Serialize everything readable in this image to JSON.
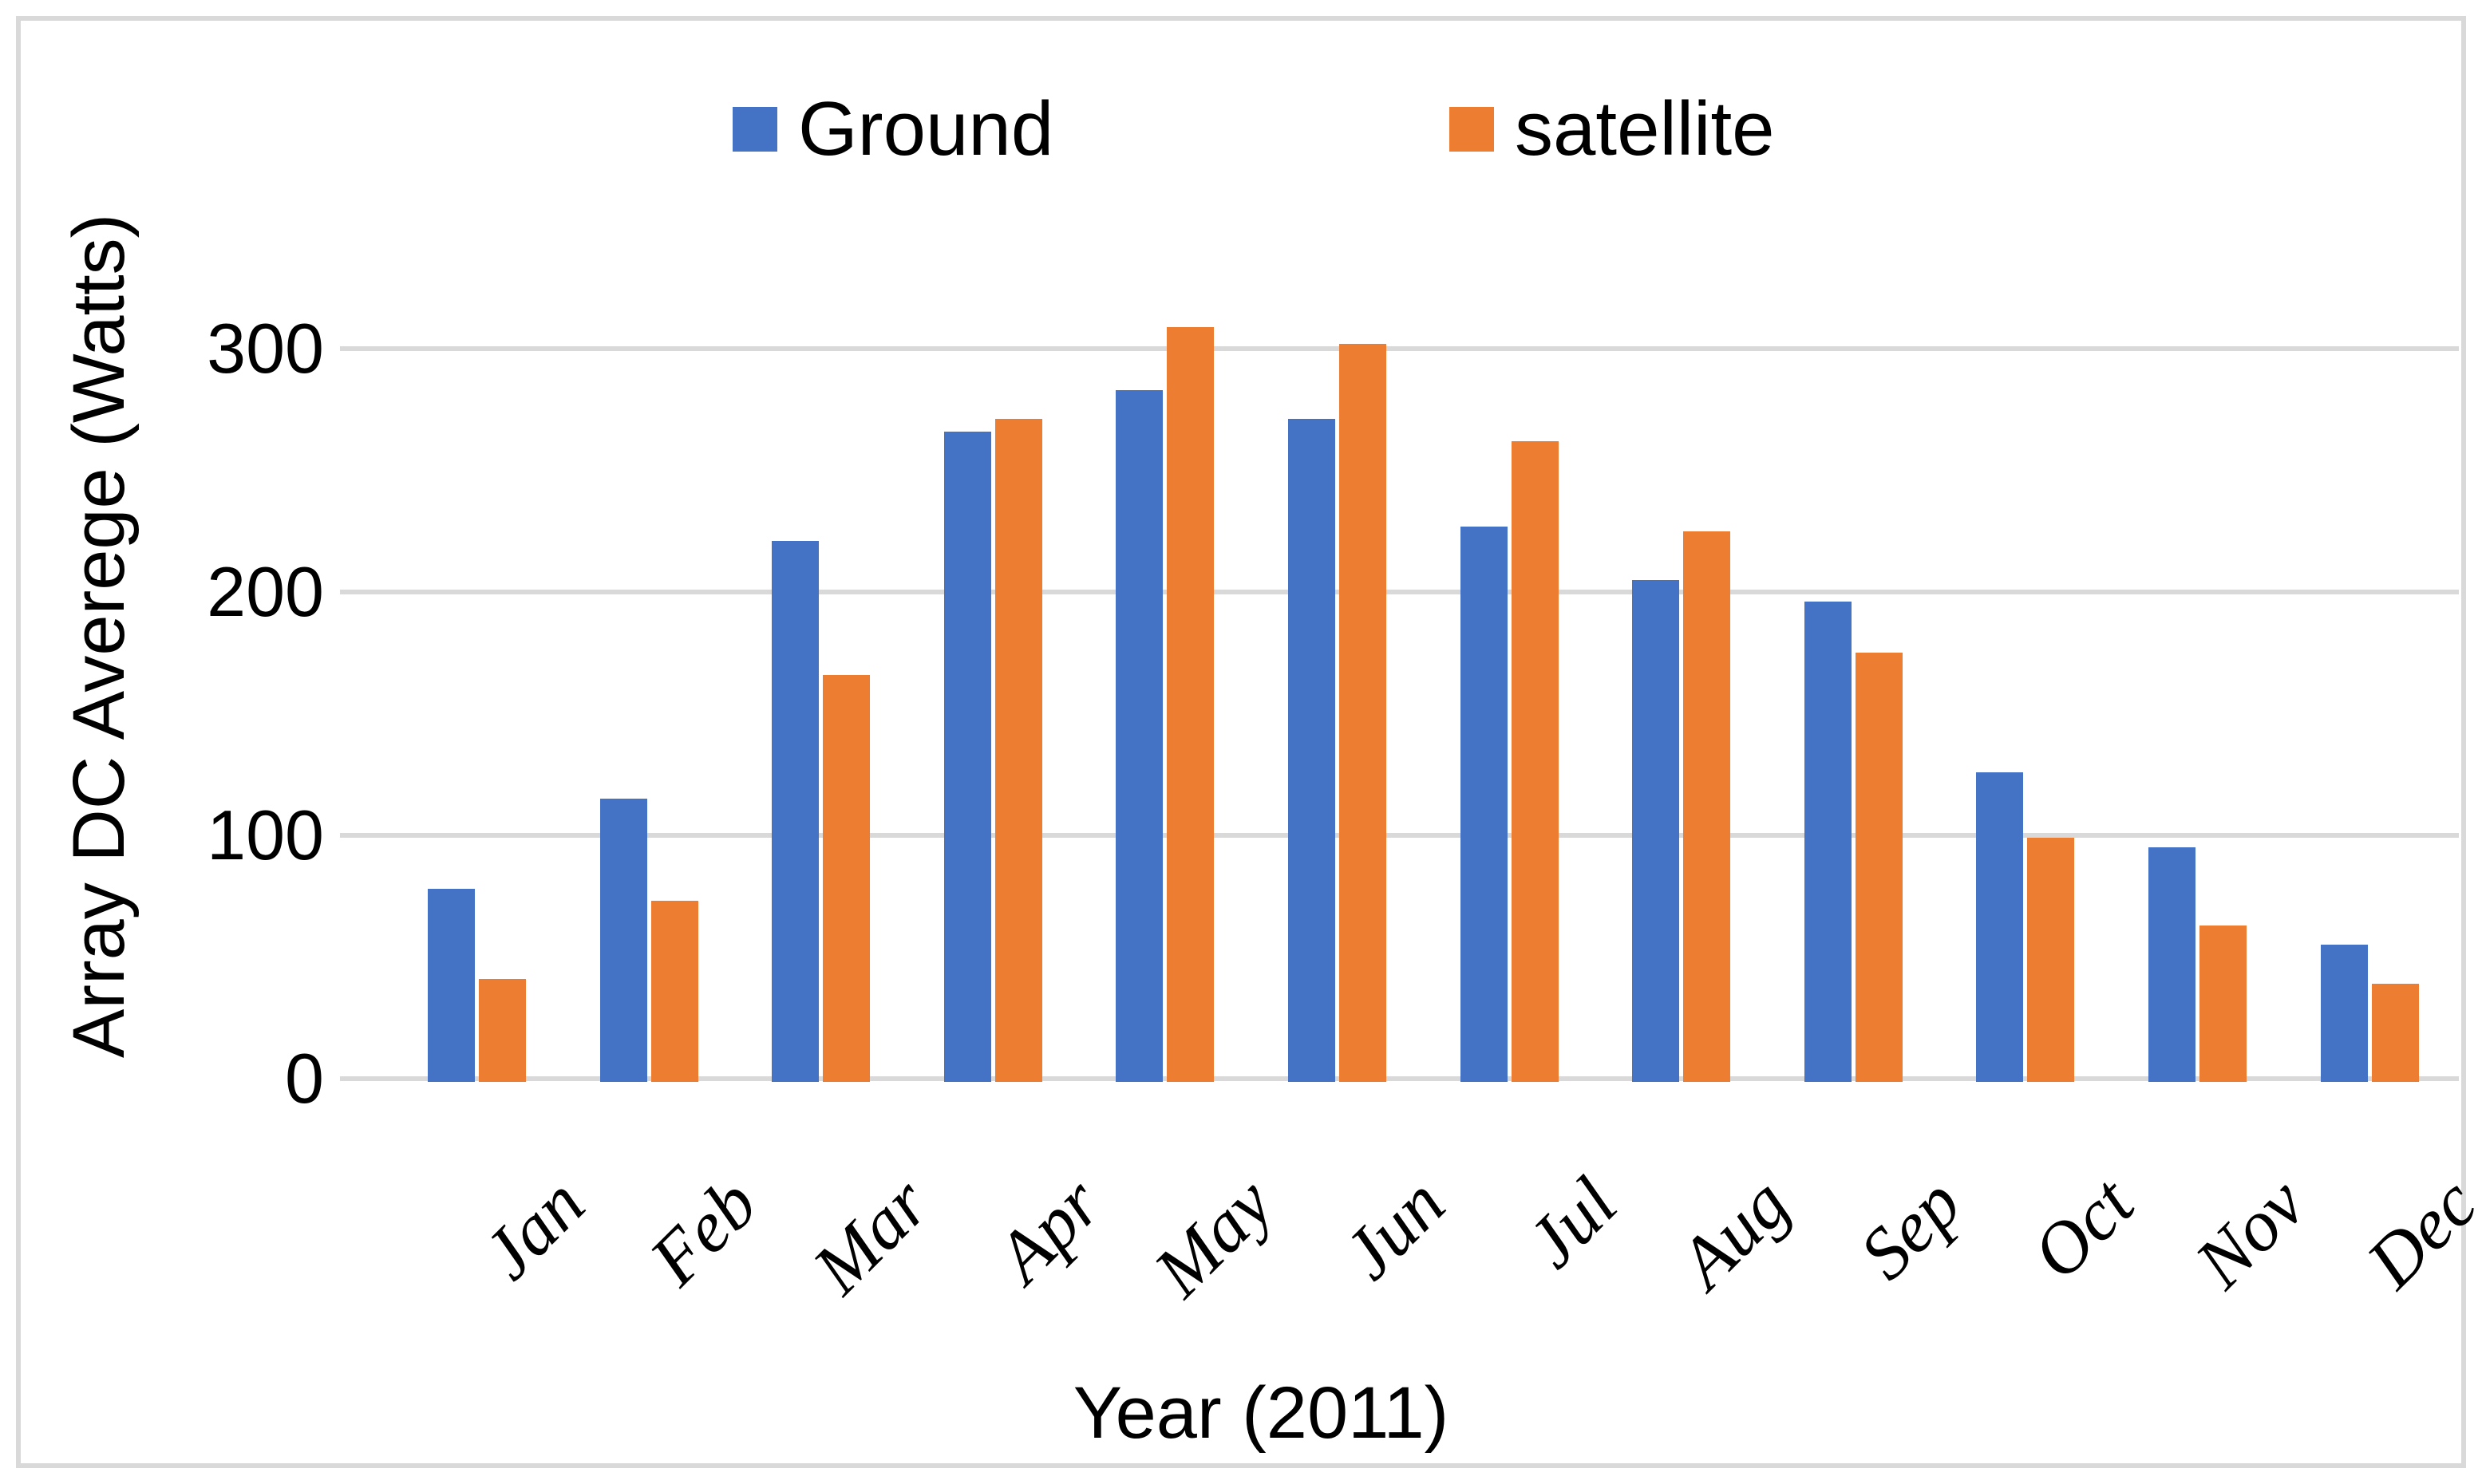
{
  "chart_data": {
    "type": "bar",
    "title": "",
    "categories": [
      "Jan",
      "Feb",
      "Mar",
      "Apr",
      "May",
      "Jun",
      "Jul",
      "Aug",
      "Sep",
      "Oct",
      "Nov",
      "Dec"
    ],
    "series": [
      {
        "name": "Ground",
        "color": "#4472C4",
        "values": [
          78,
          115,
          221,
          266,
          283,
          271,
          227,
          205,
          196,
          126,
          95,
          55
        ]
      },
      {
        "name": "satellite",
        "color": "#ED7D31",
        "values": [
          41,
          73,
          166,
          271,
          309,
          302,
          262,
          225,
          175,
          99,
          63,
          39
        ]
      }
    ],
    "xlabel": "Year (2011)",
    "ylabel": "Array DC Averege (Watts)",
    "yticks": [
      0,
      100,
      200,
      300
    ],
    "ylim": [
      0,
      340
    ],
    "grid": "horizontal",
    "legend_position": "top",
    "gridline_color": "#D9D9D9",
    "frame_color": "#D9D9D9",
    "background": "#FFFFFF"
  },
  "legend": {
    "items": [
      {
        "label": "Ground",
        "color": "#4472C4"
      },
      {
        "label": "satellite",
        "color": "#ED7D31"
      }
    ]
  }
}
